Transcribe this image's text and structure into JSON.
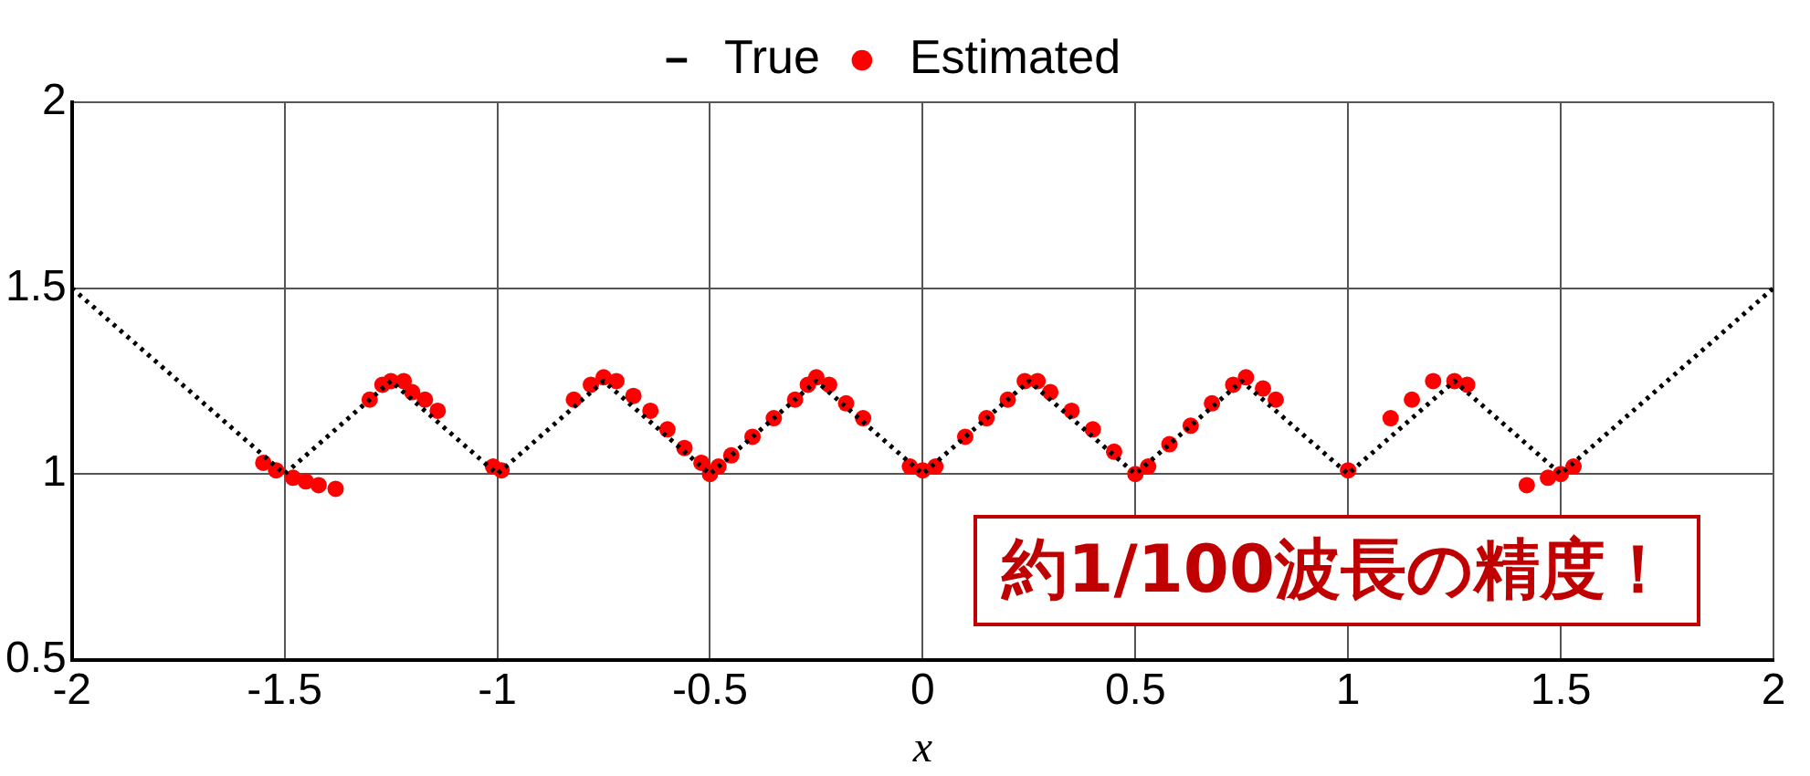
{
  "chart_data": {
    "type": "line",
    "xlabel": "x",
    "legend": "top",
    "grid": true,
    "xlim": [
      -2,
      2
    ],
    "xticks": [
      -2,
      -1.5,
      -1,
      -0.5,
      0,
      0.5,
      1,
      1.5,
      2
    ],
    "ylim": [
      0.5,
      2
    ],
    "yticks": [
      0.5,
      1,
      1.5,
      2
    ],
    "annotations": [
      "約1/100波長の精度！"
    ],
    "series": [
      {
        "name": "True",
        "type": "line",
        "color": "#000000",
        "line_style": "dotted",
        "marker": "none",
        "x": [
          -2,
          -1.5,
          -1.25,
          -1,
          -0.75,
          -0.5,
          -0.25,
          0,
          0.25,
          0.5,
          0.75,
          1,
          1.25,
          1.5,
          2
        ],
        "values": [
          1.5,
          1,
          1.25,
          1,
          1.25,
          1,
          1.25,
          1,
          1.25,
          1,
          1.25,
          1,
          1.25,
          1,
          1.5
        ]
      },
      {
        "name": "Estimated",
        "type": "scatter",
        "color": "#ff0000",
        "marker": "circle",
        "x": [
          -1.55,
          -1.52,
          -1.48,
          -1.45,
          -1.42,
          -1.38,
          -1.3,
          -1.27,
          -1.25,
          -1.22,
          -1.2,
          -1.17,
          -1.14,
          -1.01,
          -0.99,
          -0.82,
          -0.78,
          -0.75,
          -0.72,
          -0.68,
          -0.64,
          -0.6,
          -0.56,
          -0.52,
          -0.5,
          -0.48,
          -0.45,
          -0.4,
          -0.35,
          -0.3,
          -0.27,
          -0.25,
          -0.22,
          -0.18,
          -0.14,
          -0.03,
          0,
          0.03,
          0.1,
          0.15,
          0.2,
          0.24,
          0.27,
          0.3,
          0.35,
          0.4,
          0.45,
          0.5,
          0.53,
          0.58,
          0.63,
          0.68,
          0.73,
          0.76,
          0.8,
          0.83,
          1,
          1.1,
          1.15,
          1.2,
          1.25,
          1.28,
          1.42,
          1.47,
          1.5,
          1.53
        ],
        "values": [
          1.03,
          1.01,
          0.99,
          0.98,
          0.97,
          0.96,
          1.2,
          1.24,
          1.25,
          1.25,
          1.22,
          1.2,
          1.17,
          1.02,
          1.01,
          1.2,
          1.24,
          1.26,
          1.25,
          1.21,
          1.17,
          1.12,
          1.07,
          1.03,
          1,
          1.02,
          1.05,
          1.1,
          1.15,
          1.2,
          1.24,
          1.26,
          1.24,
          1.19,
          1.15,
          1.02,
          1.01,
          1.02,
          1.1,
          1.15,
          1.2,
          1.25,
          1.25,
          1.22,
          1.17,
          1.12,
          1.06,
          1,
          1.02,
          1.08,
          1.13,
          1.19,
          1.24,
          1.26,
          1.23,
          1.2,
          1.01,
          1.15,
          1.2,
          1.25,
          1.25,
          1.24,
          0.97,
          0.99,
          1,
          1.02
        ]
      }
    ]
  }
}
